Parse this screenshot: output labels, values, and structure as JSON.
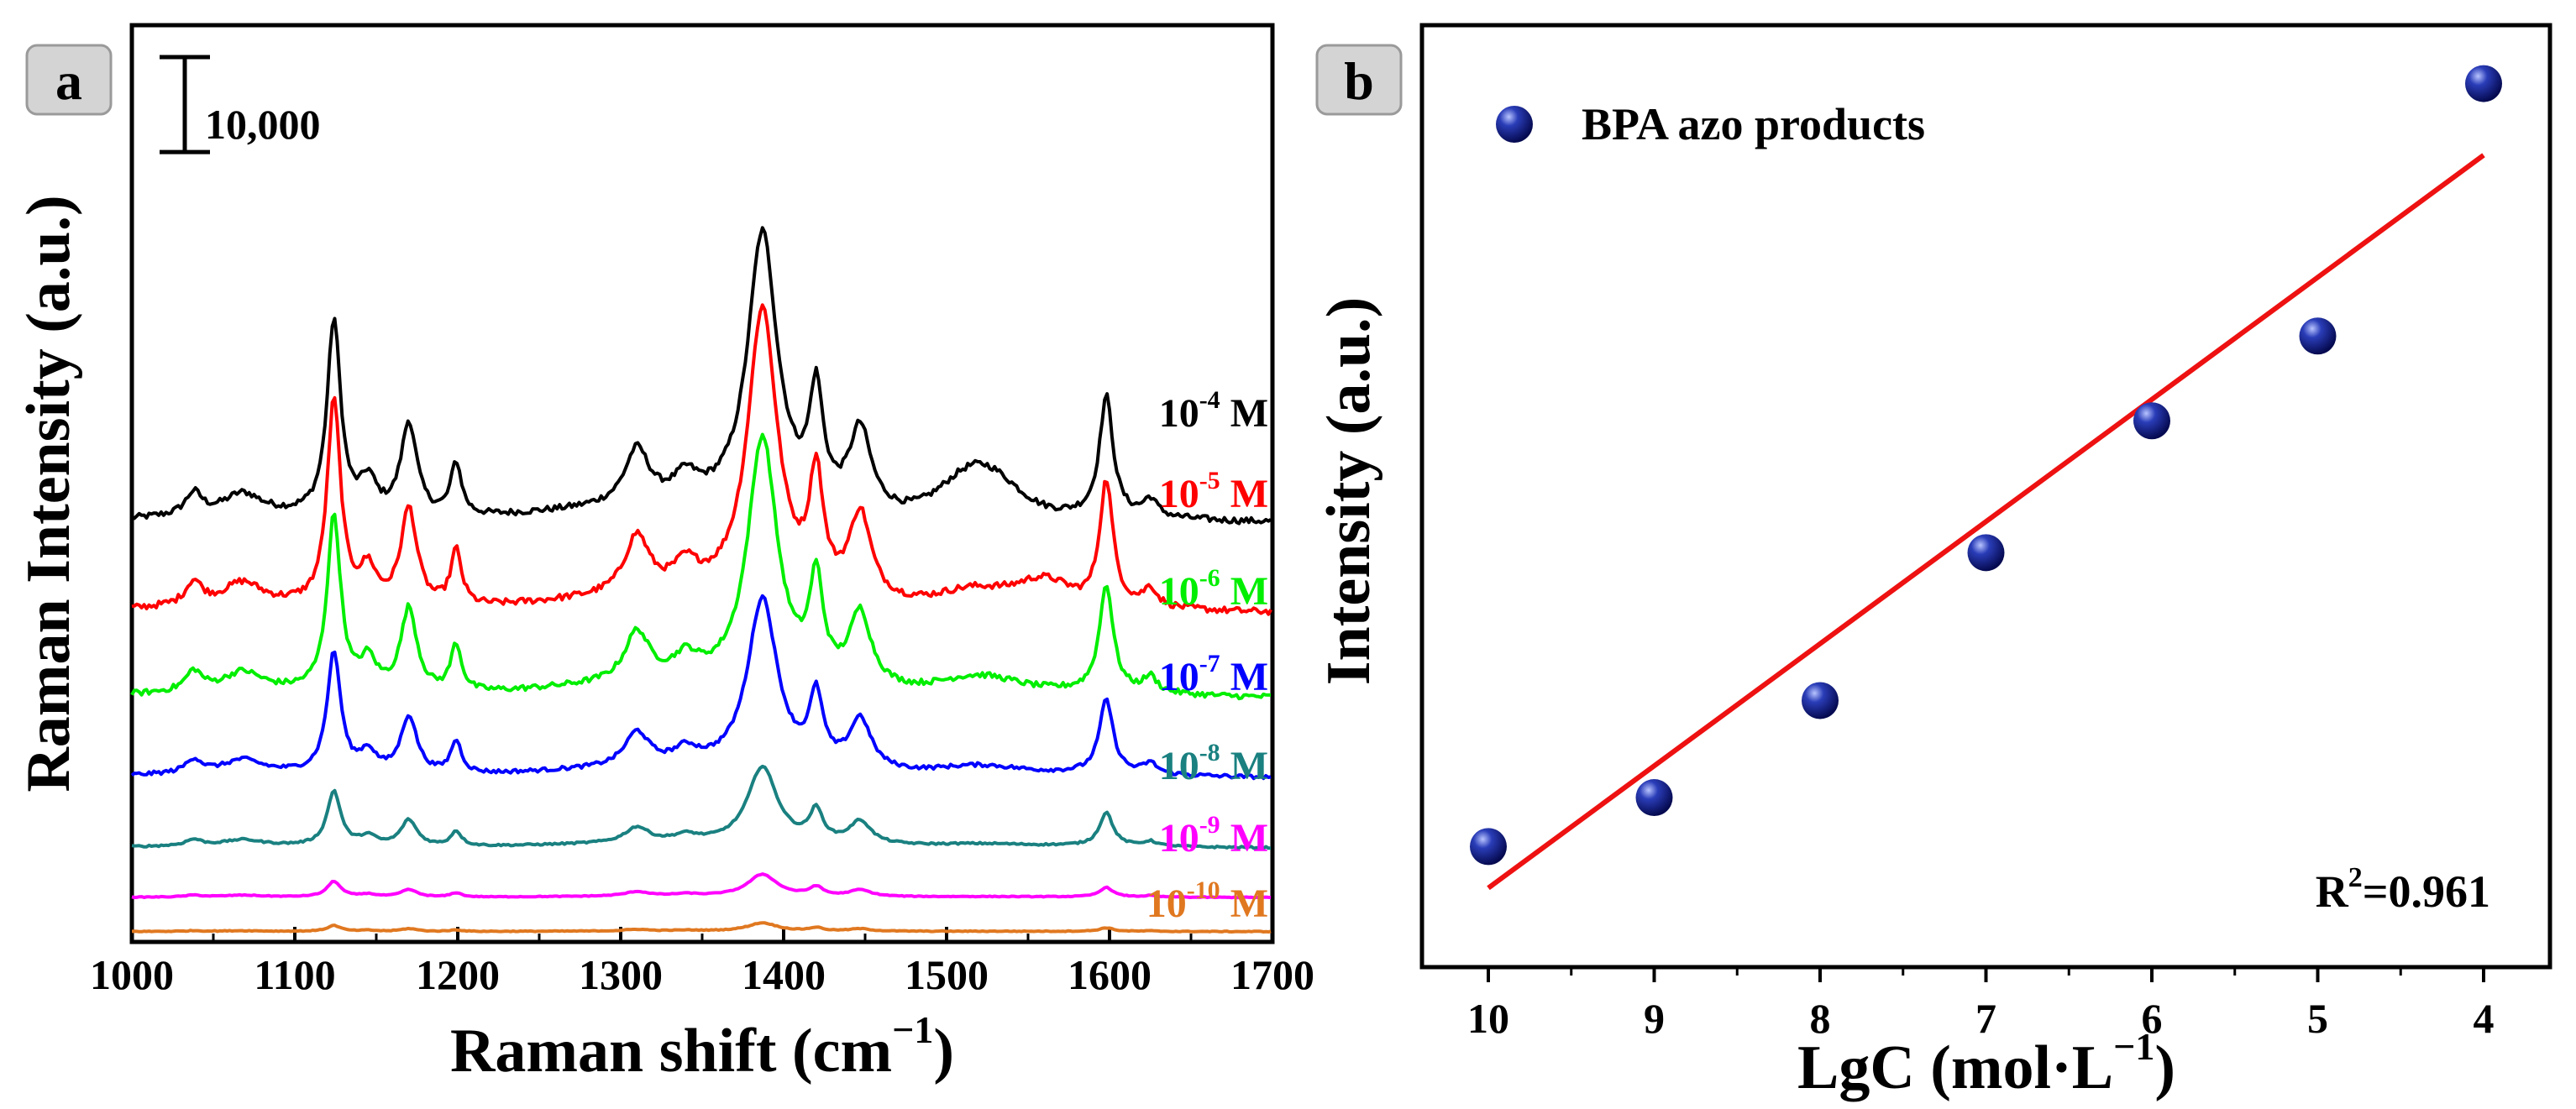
{
  "chart_data": [
    {
      "panel": "a",
      "type": "line",
      "xlabel": "Raman shift (cm",
      "xlabel_sup": "−1",
      "xlabel_tail": ")",
      "ylabel": "Raman Intensity (a.u.)",
      "xlim": [
        1000,
        1700
      ],
      "xticks": [
        "1000",
        "1100",
        "1200",
        "1300",
        "1400",
        "1500",
        "1600",
        "1700"
      ],
      "scale_bar_label": "10,000",
      "scale_bar_value": 10000,
      "peaks": [
        1038,
        1068,
        1124,
        1145,
        1170,
        1199,
        1310,
        1340,
        1387,
        1420,
        1447,
        1520,
        1598,
        1625
      ],
      "series": [
        {
          "name": "10-4 M",
          "base": "10",
          "exp": "-4",
          "unit": " M",
          "color": "#000000",
          "scale": 1.0,
          "offset": 44000,
          "bump_1500": 1
        },
        {
          "name": "10-5 M",
          "base": "10",
          "exp": "-5",
          "unit": " M",
          "color": "#ff0000",
          "scale": 1.05,
          "offset": 34500,
          "bump_1500": 0.3
        },
        {
          "name": "10-6 M",
          "base": "10",
          "exp": "-6",
          "unit": " M",
          "color": "#00ee00",
          "scale": 0.9,
          "offset": 25500,
          "bump_1500": 0.3
        },
        {
          "name": "10-7 M",
          "base": "10",
          "exp": "-7",
          "unit": " M",
          "color": "#0000ff",
          "scale": 0.62,
          "offset": 17000,
          "bump_1500": 0.2
        },
        {
          "name": "10-8 M",
          "base": "10",
          "exp": "-8",
          "unit": " M",
          "color": "#1a8080",
          "scale": 0.28,
          "offset": 9500,
          "bump_1500": 0.1
        },
        {
          "name": "10-9 M",
          "base": "10",
          "exp": "-9",
          "unit": " M",
          "color": "#ff00ff",
          "scale": 0.08,
          "offset": 4200,
          "bump_1500": 0.05
        },
        {
          "name": "10-10 M",
          "base": "10",
          "exp": "-10",
          "unit": " M",
          "color": "#e07820",
          "scale": 0.03,
          "offset": 600,
          "bump_1500": 0.02
        }
      ],
      "ylim": [
        -500,
        96000
      ]
    },
    {
      "panel": "b",
      "type": "scatter",
      "xlabel": "LgC (mol·L",
      "xlabel_sup": "−1",
      "xlabel_tail": ")",
      "ylabel": "Intensity (a.u.)",
      "xlim": [
        10.4,
        3.6
      ],
      "ylim": [
        0,
        100
      ],
      "xticks": [
        "10",
        "9",
        "8",
        "7",
        "6",
        "5",
        "4"
      ],
      "legend": "BPA azo products",
      "legend_position": "top-left",
      "annotation_base": "R",
      "annotation_sup": "2",
      "annotation_tail": "=0.961",
      "points": [
        {
          "x": 10,
          "y": 12.8
        },
        {
          "x": 9,
          "y": 18.0
        },
        {
          "x": 8,
          "y": 28.3
        },
        {
          "x": 7,
          "y": 44.0
        },
        {
          "x": 6,
          "y": 58.0
        },
        {
          "x": 5,
          "y": 67.0
        },
        {
          "x": 4,
          "y": 93.8
        }
      ],
      "fit_line": {
        "x": [
          10,
          4
        ],
        "y": [
          8.4,
          86.2
        ],
        "color": "#ee1111"
      },
      "marker_color": "#0a1a8a"
    }
  ]
}
